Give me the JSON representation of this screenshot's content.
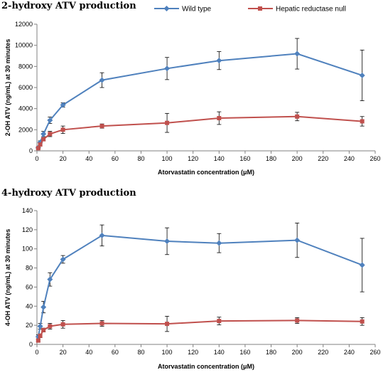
{
  "legend": {
    "placement": "top",
    "items": [
      {
        "label": "Wild type",
        "color": "#4f81bd"
      },
      {
        "label": "Hepatic reductase null",
        "color": "#c0504d"
      }
    ]
  },
  "chart_data": [
    {
      "type": "line",
      "title": "2-hydroxy ATV production",
      "xlabel": "Atorvastatin concentration (μM)",
      "ylabel": "2-OH ATV (ng/mL) at 30 minutes",
      "xlim": [
        0,
        260
      ],
      "ylim": [
        0,
        12000
      ],
      "xticks": [
        0,
        20,
        40,
        60,
        80,
        100,
        120,
        140,
        160,
        180,
        200,
        220,
        240,
        260
      ],
      "yticks": [
        0,
        2000,
        4000,
        6000,
        8000,
        10000,
        12000
      ],
      "grid": false,
      "x": [
        1,
        2.5,
        5,
        10,
        20,
        50,
        100,
        140,
        200,
        250
      ],
      "series": [
        {
          "name": "Wild type",
          "color": "#4f81bd",
          "marker": "diamond",
          "values": [
            300,
            800,
            1600,
            2900,
            4350,
            6700,
            7800,
            8550,
            9200,
            7150
          ],
          "errors": [
            100,
            150,
            250,
            300,
            200,
            700,
            1050,
            850,
            1450,
            2400
          ]
        },
        {
          "name": "Hepatic reductase null",
          "color": "#c0504d",
          "marker": "square",
          "values": [
            250,
            600,
            1100,
            1600,
            2000,
            2350,
            2650,
            3100,
            3250,
            2800
          ],
          "errors": [
            80,
            100,
            150,
            250,
            350,
            200,
            900,
            600,
            400,
            450
          ]
        }
      ]
    },
    {
      "type": "line",
      "title": "4-hydroxy ATV production",
      "xlabel": "Atorvastatin concentration (μM)",
      "ylabel": "4-OH ATV (ng/mL) at 30 minutes",
      "xlim": [
        0,
        260
      ],
      "ylim": [
        0,
        140
      ],
      "xticks": [
        0,
        20,
        40,
        60,
        80,
        100,
        120,
        140,
        160,
        180,
        200,
        220,
        240,
        260
      ],
      "yticks": [
        0,
        20,
        40,
        60,
        80,
        100,
        120,
        140
      ],
      "grid": false,
      "x": [
        1,
        2.5,
        5,
        10,
        20,
        50,
        100,
        140,
        200,
        250
      ],
      "series": [
        {
          "name": "Wild type",
          "color": "#4f81bd",
          "marker": "diamond",
          "values": [
            8,
            19,
            39,
            68,
            89,
            114,
            108,
            106,
            109,
            83
          ],
          "errors": [
            2,
            3,
            6,
            7,
            4,
            11,
            14,
            10,
            18,
            28
          ]
        },
        {
          "name": "Hepatic reductase null",
          "color": "#c0504d",
          "marker": "square",
          "values": [
            4,
            9,
            15,
            19,
            21,
            22,
            21.5,
            24.5,
            25,
            24
          ],
          "errors": [
            1,
            2,
            2,
            3,
            4,
            3,
            8,
            4,
            3,
            4
          ]
        }
      ]
    }
  ]
}
